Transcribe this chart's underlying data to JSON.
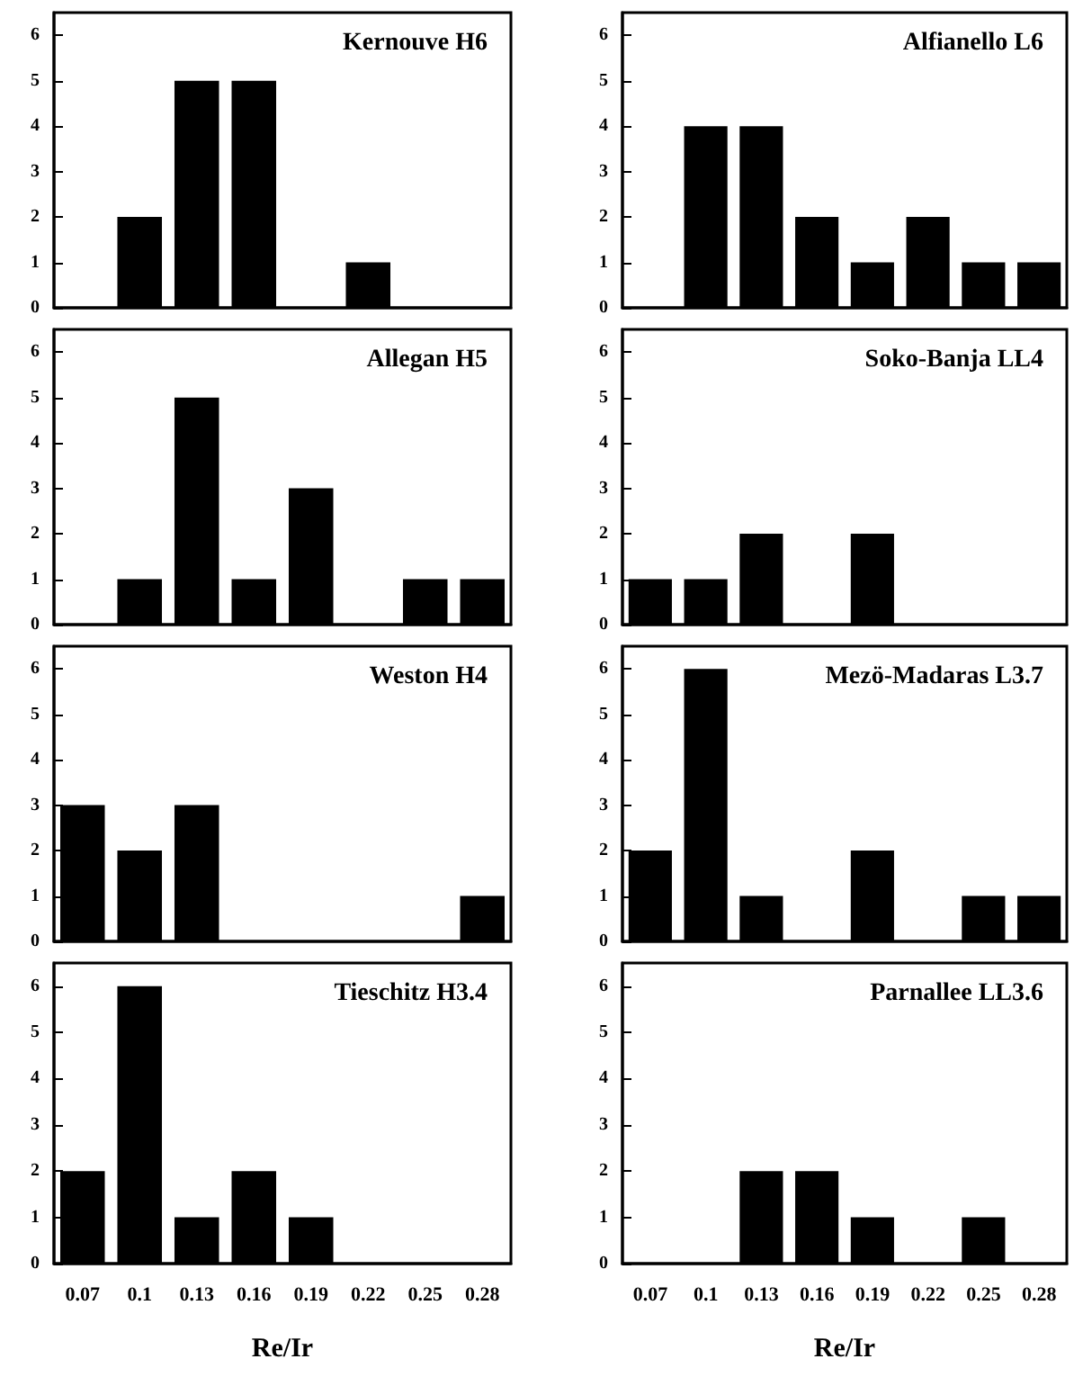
{
  "chart_data": [
    {
      "type": "bar",
      "title": "Kernouve H6",
      "categories": [
        "0.07",
        "0.1",
        "0.13",
        "0.16",
        "0.19",
        "0.22",
        "0.25",
        "0.28"
      ],
      "values": [
        0,
        2,
        5,
        5,
        0,
        1,
        0,
        0
      ],
      "color": "#000000",
      "ylim": [
        0,
        6.5
      ],
      "yticks": [
        0,
        1,
        2,
        3,
        4,
        5,
        6
      ],
      "tick_labels": "y"
    },
    {
      "type": "bar",
      "title": "Alfianello L6",
      "categories": [
        "0.07",
        "0.1",
        "0.13",
        "0.16",
        "0.19",
        "0.22",
        "0.25",
        "0.28"
      ],
      "values": [
        0,
        4,
        4,
        2,
        1,
        2,
        1,
        1
      ],
      "color": "#000000",
      "ylim": [
        0,
        6.5
      ],
      "yticks": [
        0,
        1,
        2,
        3,
        4,
        5,
        6
      ],
      "tick_labels": "y"
    },
    {
      "type": "bar",
      "title": "Allegan H5",
      "categories": [
        "0.07",
        "0.1",
        "0.13",
        "0.16",
        "0.19",
        "0.22",
        "0.25",
        "0.28"
      ],
      "values": [
        0,
        1,
        5,
        1,
        3,
        0,
        1,
        1
      ],
      "color": "#000000",
      "ylim": [
        0,
        6.5
      ],
      "yticks": [
        0,
        1,
        2,
        3,
        4,
        5,
        6
      ],
      "tick_labels": "y"
    },
    {
      "type": "bar",
      "title": "Soko-Banja LL4",
      "categories": [
        "0.07",
        "0.1",
        "0.13",
        "0.16",
        "0.19",
        "0.22",
        "0.25",
        "0.28"
      ],
      "values": [
        1,
        1,
        2,
        0,
        2,
        0,
        0,
        0
      ],
      "color": "#000000",
      "ylim": [
        0,
        6.5
      ],
      "yticks": [
        0,
        1,
        2,
        3,
        4,
        5,
        6
      ],
      "tick_labels": "y"
    },
    {
      "type": "bar",
      "title": "Weston H4",
      "categories": [
        "0.07",
        "0.1",
        "0.13",
        "0.16",
        "0.19",
        "0.22",
        "0.25",
        "0.28"
      ],
      "values": [
        3,
        2,
        3,
        0,
        0,
        0,
        0,
        1
      ],
      "color": "#000000",
      "ylim": [
        0,
        6.5
      ],
      "yticks": [
        0,
        1,
        2,
        3,
        4,
        5,
        6
      ],
      "tick_labels": "y"
    },
    {
      "type": "bar",
      "title": "Mezö-Madaras L3.7",
      "categories": [
        "0.07",
        "0.1",
        "0.13",
        "0.16",
        "0.19",
        "0.22",
        "0.25",
        "0.28"
      ],
      "values": [
        2,
        6,
        1,
        0,
        2,
        0,
        1,
        1
      ],
      "color": "#000000",
      "ylim": [
        0,
        6.5
      ],
      "yticks": [
        0,
        1,
        2,
        3,
        4,
        5,
        6
      ],
      "tick_labels": "y"
    },
    {
      "type": "bar",
      "title": "Tieschitz H3.4",
      "xlabel": "Re/Ir",
      "categories": [
        "0.07",
        "0.1",
        "0.13",
        "0.16",
        "0.19",
        "0.22",
        "0.25",
        "0.28"
      ],
      "values": [
        2,
        6,
        1,
        2,
        1,
        0,
        0,
        0
      ],
      "color": "#000000",
      "ylim": [
        0,
        6.5
      ],
      "yticks": [
        0,
        1,
        2,
        3,
        4,
        5,
        6
      ]
    },
    {
      "type": "bar",
      "title": "Parnallee LL3.6",
      "xlabel": "Re/Ir",
      "categories": [
        "0.07",
        "0.1",
        "0.13",
        "0.16",
        "0.19",
        "0.22",
        "0.25",
        "0.28"
      ],
      "values": [
        0,
        0,
        2,
        2,
        1,
        0,
        1,
        0
      ],
      "color": "#000000",
      "ylim": [
        0,
        6.5
      ],
      "yticks": [
        0,
        1,
        2,
        3,
        4,
        5,
        6
      ]
    }
  ]
}
